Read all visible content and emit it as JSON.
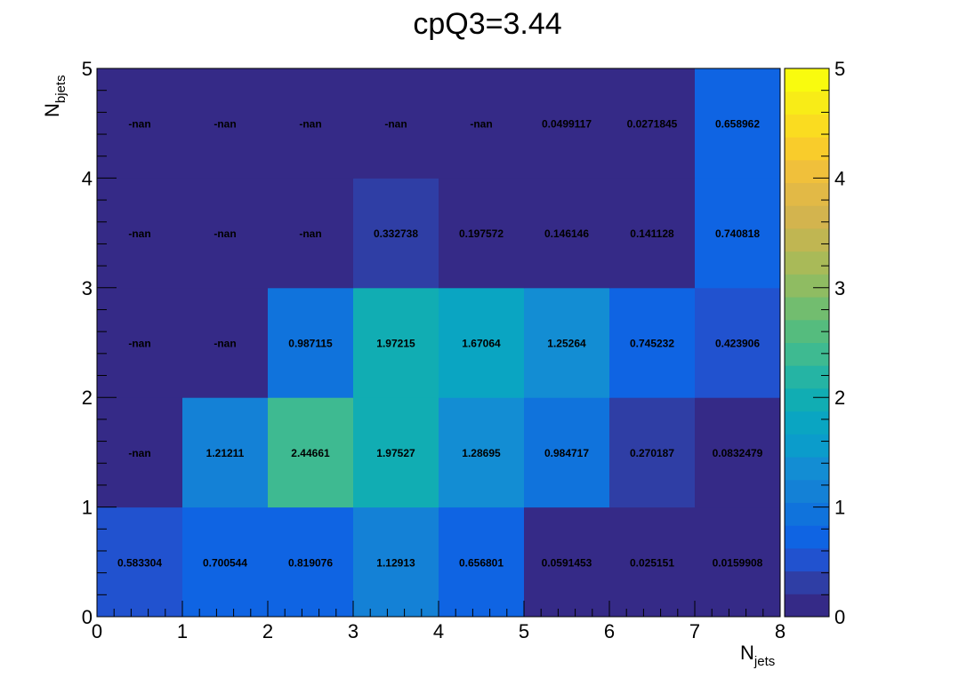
{
  "chart_data": {
    "type": "heatmap",
    "title": "cpQ3=3.44",
    "xlabel": "N",
    "xlabel_sub": "jets",
    "ylabel": "N",
    "ylabel_sub": "bjets",
    "xlim": [
      0,
      8
    ],
    "ylim": [
      0,
      5
    ],
    "x_ticks": [
      "0",
      "1",
      "2",
      "3",
      "4",
      "5",
      "6",
      "7",
      "8"
    ],
    "y_ticks": [
      "0",
      "1",
      "2",
      "3",
      "4",
      "5"
    ],
    "zlim": [
      0,
      5
    ],
    "z_ticks": [
      "0",
      "1",
      "2",
      "3",
      "4",
      "5"
    ],
    "grid": false,
    "colorbar": "right",
    "palette": [
      "#352a87",
      "#2f3ea5",
      "#2152cf",
      "#0f64e3",
      "#1073dc",
      "#1481d6",
      "#138dd3",
      "#0b9ccb",
      "#0aa5c2",
      "#11adb3",
      "#25b4a4",
      "#3eba91",
      "#55bc7e",
      "#72bd6f",
      "#8fbc62",
      "#a9ba58",
      "#c0b652",
      "#d3b44e",
      "#e2b946",
      "#f0c03b",
      "#f9cc2b",
      "#fadc20",
      "#f8ec17",
      "#f9fb0e"
    ],
    "cells": [
      {
        "x": 0,
        "y": 0,
        "value": 0.583304,
        "label": "0.583304"
      },
      {
        "x": 1,
        "y": 0,
        "value": 0.700544,
        "label": "0.700544"
      },
      {
        "x": 2,
        "y": 0,
        "value": 0.819076,
        "label": "0.819076"
      },
      {
        "x": 3,
        "y": 0,
        "value": 1.12913,
        "label": "1.12913"
      },
      {
        "x": 4,
        "y": 0,
        "value": 0.656801,
        "label": "0.656801"
      },
      {
        "x": 5,
        "y": 0,
        "value": 0.0591453,
        "label": "0.0591453"
      },
      {
        "x": 6,
        "y": 0,
        "value": 0.025151,
        "label": "0.025151"
      },
      {
        "x": 7,
        "y": 0,
        "value": 0.0159908,
        "label": "0.0159908"
      },
      {
        "x": 0,
        "y": 1,
        "value": null,
        "label": "-nan"
      },
      {
        "x": 1,
        "y": 1,
        "value": 1.21211,
        "label": "1.21211"
      },
      {
        "x": 2,
        "y": 1,
        "value": 2.44661,
        "label": "2.44661"
      },
      {
        "x": 3,
        "y": 1,
        "value": 1.97527,
        "label": "1.97527"
      },
      {
        "x": 4,
        "y": 1,
        "value": 1.28695,
        "label": "1.28695"
      },
      {
        "x": 5,
        "y": 1,
        "value": 0.984717,
        "label": "0.984717"
      },
      {
        "x": 6,
        "y": 1,
        "value": 0.270187,
        "label": "0.270187"
      },
      {
        "x": 7,
        "y": 1,
        "value": 0.0832479,
        "label": "0.0832479"
      },
      {
        "x": 0,
        "y": 2,
        "value": null,
        "label": "-nan"
      },
      {
        "x": 1,
        "y": 2,
        "value": null,
        "label": "-nan"
      },
      {
        "x": 2,
        "y": 2,
        "value": 0.987115,
        "label": "0.987115"
      },
      {
        "x": 3,
        "y": 2,
        "value": 1.97215,
        "label": "1.97215"
      },
      {
        "x": 4,
        "y": 2,
        "value": 1.67064,
        "label": "1.67064"
      },
      {
        "x": 5,
        "y": 2,
        "value": 1.25264,
        "label": "1.25264"
      },
      {
        "x": 6,
        "y": 2,
        "value": 0.745232,
        "label": "0.745232"
      },
      {
        "x": 7,
        "y": 2,
        "value": 0.423906,
        "label": "0.423906"
      },
      {
        "x": 0,
        "y": 3,
        "value": null,
        "label": "-nan"
      },
      {
        "x": 1,
        "y": 3,
        "value": null,
        "label": "-nan"
      },
      {
        "x": 2,
        "y": 3,
        "value": null,
        "label": "-nan"
      },
      {
        "x": 3,
        "y": 3,
        "value": 0.332738,
        "label": "0.332738"
      },
      {
        "x": 4,
        "y": 3,
        "value": 0.197572,
        "label": "0.197572"
      },
      {
        "x": 5,
        "y": 3,
        "value": 0.146146,
        "label": "0.146146"
      },
      {
        "x": 6,
        "y": 3,
        "value": 0.141128,
        "label": "0.141128"
      },
      {
        "x": 7,
        "y": 3,
        "value": 0.740818,
        "label": "0.740818"
      },
      {
        "x": 0,
        "y": 4,
        "value": null,
        "label": "-nan"
      },
      {
        "x": 1,
        "y": 4,
        "value": null,
        "label": "-nan"
      },
      {
        "x": 2,
        "y": 4,
        "value": null,
        "label": "-nan"
      },
      {
        "x": 3,
        "y": 4,
        "value": null,
        "label": "-nan"
      },
      {
        "x": 4,
        "y": 4,
        "value": null,
        "label": "-nan"
      },
      {
        "x": 5,
        "y": 4,
        "value": 0.0499117,
        "label": "0.0499117"
      },
      {
        "x": 6,
        "y": 4,
        "value": 0.0271845,
        "label": "0.0271845"
      },
      {
        "x": 7,
        "y": 4,
        "value": 0.658962,
        "label": "0.658962"
      }
    ]
  }
}
